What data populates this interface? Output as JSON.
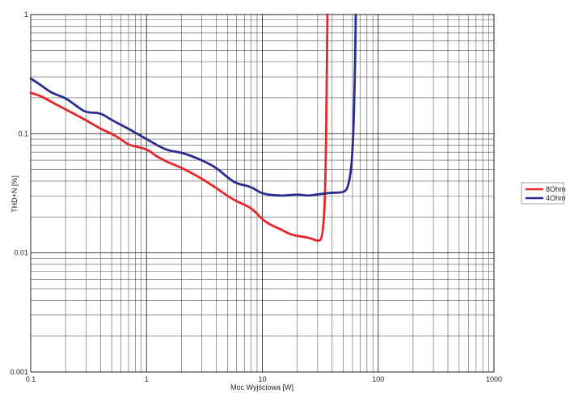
{
  "chart_data": {
    "type": "line",
    "xscale": "log",
    "yscale": "log",
    "xlim": [
      0.1,
      1000
    ],
    "ylim": [
      0.001,
      1
    ],
    "xlabel": "Moc Wyjściowa [W]",
    "ylabel": "THD+N [%]",
    "grid": true,
    "legend_position": "right",
    "x_ticks": [
      "0.1",
      "1",
      "10",
      "100",
      "1000"
    ],
    "y_ticks": [
      "0.001",
      "0.01",
      "0.1",
      "1"
    ],
    "series": [
      {
        "name": "8Ohm",
        "color": "#e8262b",
        "points": [
          [
            0.1,
            0.22
          ],
          [
            0.12,
            0.21
          ],
          [
            0.15,
            0.185
          ],
          [
            0.2,
            0.16
          ],
          [
            0.3,
            0.13
          ],
          [
            0.4,
            0.11
          ],
          [
            0.5,
            0.1
          ],
          [
            0.6,
            0.09
          ],
          [
            0.7,
            0.08
          ],
          [
            1,
            0.075
          ],
          [
            1.2,
            0.065
          ],
          [
            1.5,
            0.058
          ],
          [
            2,
            0.052
          ],
          [
            3,
            0.042
          ],
          [
            4,
            0.035
          ],
          [
            5,
            0.03
          ],
          [
            6,
            0.027
          ],
          [
            8,
            0.024
          ],
          [
            10,
            0.019
          ],
          [
            12,
            0.017
          ],
          [
            14,
            0.016
          ],
          [
            18,
            0.014
          ],
          [
            25,
            0.0135
          ],
          [
            30,
            0.0125
          ],
          [
            33,
            0.013
          ],
          [
            35,
            0.03
          ],
          [
            36,
            0.3
          ],
          [
            36.5,
            1
          ]
        ]
      },
      {
        "name": "4Ohm",
        "color": "#2a2d8e",
        "points": [
          [
            0.1,
            0.29
          ],
          [
            0.12,
            0.26
          ],
          [
            0.15,
            0.22
          ],
          [
            0.2,
            0.2
          ],
          [
            0.25,
            0.17
          ],
          [
            0.3,
            0.15
          ],
          [
            0.4,
            0.15
          ],
          [
            0.5,
            0.13
          ],
          [
            0.7,
            0.11
          ],
          [
            1,
            0.09
          ],
          [
            1.5,
            0.072
          ],
          [
            2,
            0.07
          ],
          [
            3,
            0.06
          ],
          [
            4,
            0.052
          ],
          [
            5,
            0.043
          ],
          [
            6,
            0.038
          ],
          [
            8,
            0.036
          ],
          [
            10,
            0.031
          ],
          [
            15,
            0.03
          ],
          [
            20,
            0.031
          ],
          [
            25,
            0.03
          ],
          [
            30,
            0.031
          ],
          [
            40,
            0.032
          ],
          [
            50,
            0.032
          ],
          [
            55,
            0.035
          ],
          [
            60,
            0.06
          ],
          [
            63,
            0.3
          ],
          [
            64,
            1
          ]
        ]
      }
    ]
  }
}
